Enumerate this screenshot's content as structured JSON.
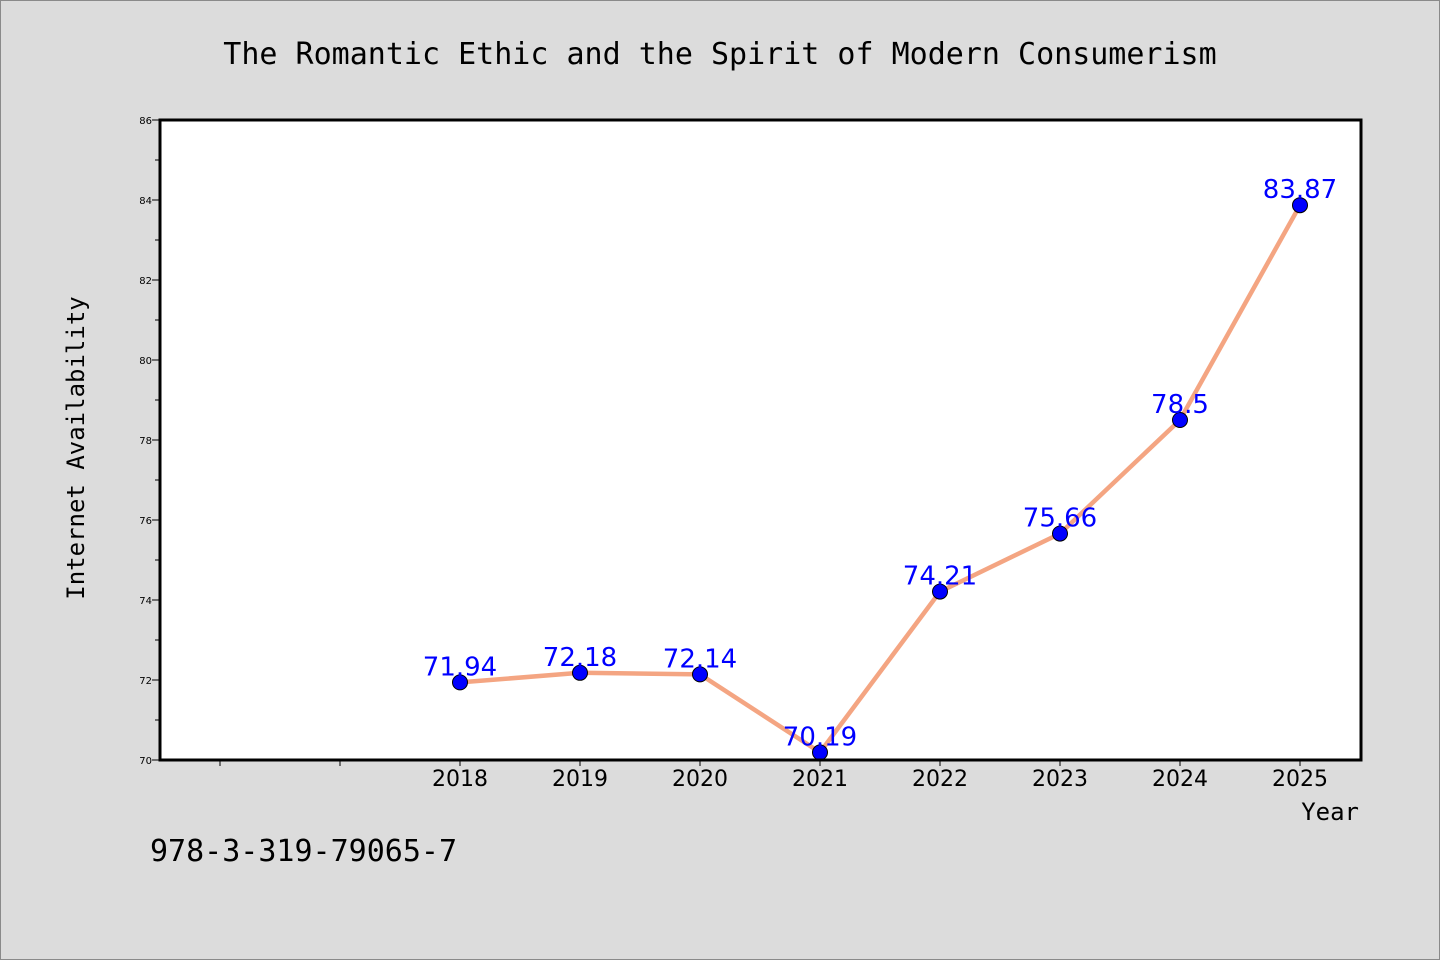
{
  "chart_data": {
    "type": "line",
    "title": "The Romantic Ethic and the Spirit of Modern Consumerism",
    "xlabel": "Year",
    "ylabel": "Internet Availability",
    "x": [
      "2018",
      "2019",
      "2020",
      "2021",
      "2022",
      "2023",
      "2024",
      "2025"
    ],
    "x_extended": [
      "",
      "",
      "2018",
      "2019",
      "2020",
      "2021",
      "2022",
      "2023",
      "2024",
      "2025"
    ],
    "series": [
      {
        "values": [
          71.94,
          72.18,
          72.14,
          70.19,
          74.21,
          75.66,
          78.5,
          83.87
        ],
        "labels": [
          "71.94",
          "72.18",
          "72.14",
          "70.19",
          "74.21",
          "75.66",
          "78.5",
          "83.87"
        ]
      }
    ],
    "ylim": [
      70,
      86
    ],
    "y_ticks": [
      "70",
      "72",
      "74",
      "76",
      "78",
      "80",
      "82",
      "84",
      "86"
    ],
    "grid": false,
    "line_color": "#f4a582",
    "marker_color": "#0000ff",
    "label_color": "#0000ff",
    "plot_background": "#ffffff",
    "page_background": "#dcdcdc"
  },
  "footer": {
    "isbn": "978-3-319-79065-7"
  }
}
